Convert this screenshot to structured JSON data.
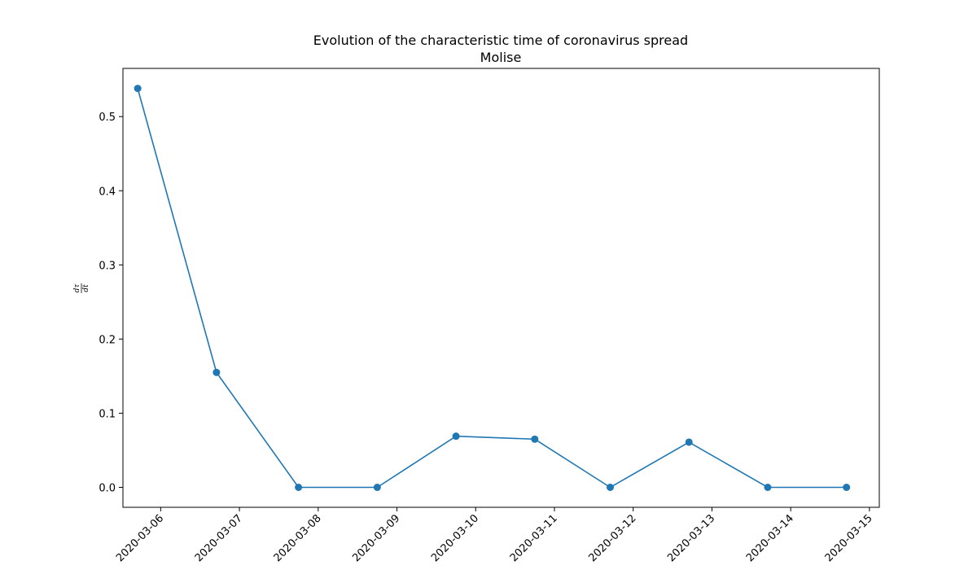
{
  "chart_data": {
    "type": "line",
    "title": "Evolution of the characteristic time of coronavirus spread",
    "subtitle": "Molise",
    "xlabel": "",
    "ylabel_num": "dτ",
    "ylabel_den": "dt",
    "x": [
      "2020-03-05T17:00",
      "2020-03-06T17:00",
      "2020-03-07T18:00",
      "2020-03-08T18:00",
      "2020-03-09T18:00",
      "2020-03-10T18:00",
      "2020-03-11T17:00",
      "2020-03-12T17:00",
      "2020-03-13T17:00",
      "2020-03-14T17:00"
    ],
    "series": [
      {
        "values": [
          0.538,
          0.155,
          0.0,
          0.0,
          0.069,
          0.065,
          0.0,
          0.061,
          0.0,
          0.0
        ],
        "color": "#1f77b4"
      }
    ],
    "x_ticks": [
      "2020-03-06",
      "2020-03-07",
      "2020-03-08",
      "2020-03-09",
      "2020-03-10",
      "2020-03-11",
      "2020-03-12",
      "2020-03-13",
      "2020-03-14",
      "2020-03-15"
    ],
    "y_ticks": [
      "0.0",
      "0.1",
      "0.2",
      "0.3",
      "0.4",
      "0.5"
    ],
    "y_tick_values": [
      0.0,
      0.1,
      0.2,
      0.3,
      0.4,
      0.5
    ],
    "xlim": [
      "2020-03-05T12:30",
      "2020-03-15T03:00"
    ],
    "ylim": [
      -0.0269,
      0.565
    ],
    "grid": false,
    "legend": "none"
  }
}
